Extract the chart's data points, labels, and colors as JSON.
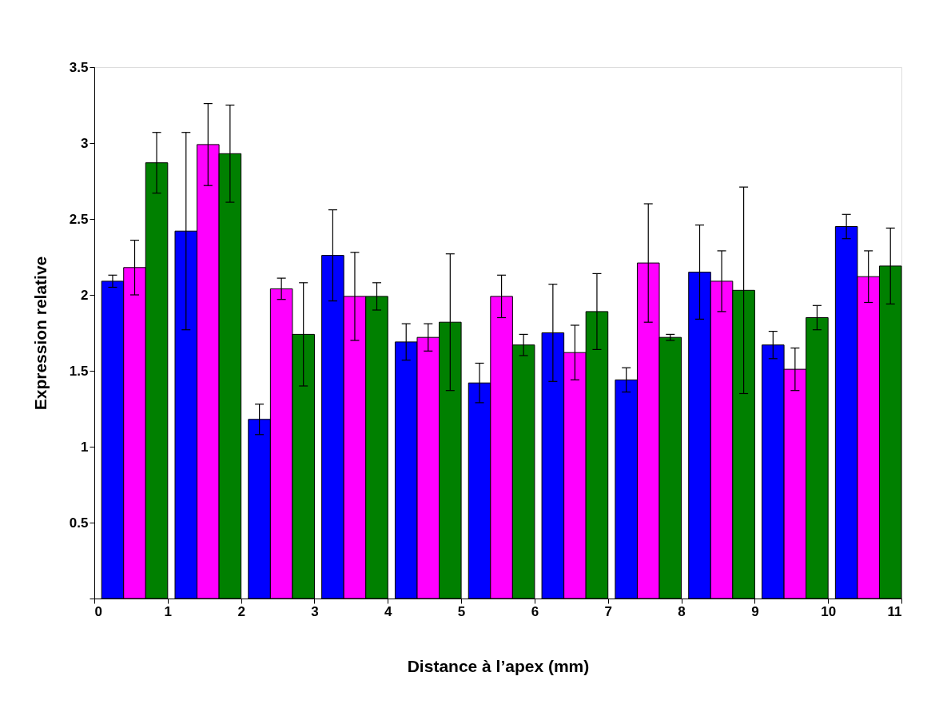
{
  "chart_data": {
    "type": "bar",
    "xlabel": "Distance à l’apex (mm)",
    "ylabel": "Expression relative",
    "x": [
      0.55,
      1.55,
      2.55,
      3.55,
      4.55,
      5.55,
      6.55,
      7.55,
      8.55,
      9.55,
      10.55
    ],
    "xlim": [
      0,
      11
    ],
    "xticks": [
      0,
      1,
      2,
      3,
      4,
      5,
      6,
      7,
      8,
      9,
      10,
      11
    ],
    "ylim": [
      0,
      3.5
    ],
    "yticks": [
      {
        "value": 0,
        "label": null
      },
      0.5,
      1,
      1.5,
      2,
      2.5,
      3,
      3.5
    ],
    "series": [
      {
        "color": "#0000ff",
        "values": [
          2.09,
          2.42,
          1.18,
          2.26,
          1.69,
          1.42,
          1.75,
          1.44,
          2.15,
          1.67,
          2.45
        ],
        "errors": [
          0.04,
          0.65,
          0.1,
          0.3,
          0.12,
          0.13,
          0.32,
          0.08,
          0.31,
          0.09,
          0.08
        ]
      },
      {
        "color": "#ff00ff",
        "values": [
          2.18,
          2.99,
          2.04,
          1.99,
          1.72,
          1.99,
          1.62,
          2.21,
          2.09,
          1.51,
          2.12
        ],
        "errors": [
          0.18,
          0.27,
          0.07,
          0.29,
          0.09,
          0.14,
          0.18,
          0.39,
          0.2,
          0.14,
          0.17
        ]
      },
      {
        "color": "#008000",
        "values": [
          2.87,
          2.93,
          1.74,
          1.99,
          1.82,
          1.67,
          1.89,
          1.72,
          2.03,
          1.85,
          2.19
        ],
        "errors": [
          0.2,
          0.32,
          0.34,
          0.09,
          0.45,
          0.07,
          0.25,
          0.02,
          0.68,
          0.08,
          0.25
        ]
      }
    ]
  }
}
